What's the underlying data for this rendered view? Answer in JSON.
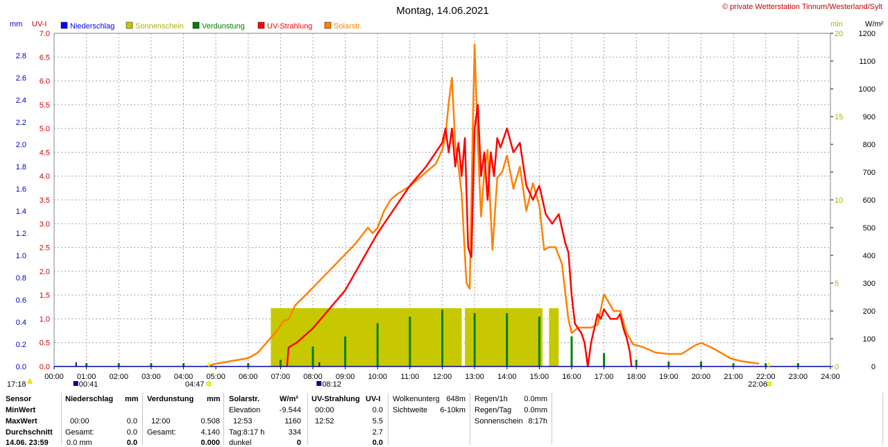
{
  "title": "Montag, 14.06.2021",
  "copyright": "© private Wetterstation Tinnum/Westerland/Sylt",
  "colors": {
    "niederschlag": "#0000ff",
    "sonnenschein": "#c8c800",
    "verdunstung": "#008000",
    "uv": "#ff0000",
    "solar": "#ff8000"
  },
  "chart_data": {
    "type": "line",
    "axes": {
      "left_mm": {
        "label": "mm",
        "min": 0,
        "max": 3.0,
        "ticks": [
          "0.0",
          "0.2",
          "0.4",
          "0.6",
          "0.8",
          "1.0",
          "1.2",
          "1.4",
          "1.6",
          "1.8",
          "2.0",
          "2.2",
          "2.4",
          "2.6",
          "2.8"
        ]
      },
      "left_uv": {
        "label": "UV-I",
        "min": 0,
        "max": 7.0,
        "ticks": [
          "0.0",
          "0.5",
          "1.0",
          "1.5",
          "2.0",
          "2.5",
          "3.0",
          "3.5",
          "4.0",
          "4.5",
          "5.0",
          "5.5",
          "6.0",
          "6.5",
          "7.0"
        ]
      },
      "right_min": {
        "label": "min",
        "min": 0,
        "max": 20,
        "ticks": [
          "0",
          "5",
          "10",
          "15",
          "20"
        ]
      },
      "right_wm2": {
        "label": "W/m²",
        "min": 0,
        "max": 1200,
        "ticks": [
          "0",
          "100",
          "200",
          "300",
          "400",
          "500",
          "600",
          "700",
          "800",
          "900",
          "1000",
          "1100",
          "1200"
        ]
      },
      "x": {
        "min": 0,
        "max": 24,
        "ticks": [
          "00:00",
          "01:00",
          "02:00",
          "03:00",
          "04:00",
          "05:00",
          "06:00",
          "07:00",
          "08:00",
          "09:00",
          "10:00",
          "11:00",
          "12:00",
          "13:00",
          "14:00",
          "15:00",
          "16:00",
          "17:00",
          "18:00",
          "19:00",
          "20:00",
          "21:00",
          "22:00",
          "23:00",
          "24:00"
        ]
      }
    },
    "legend": [
      {
        "name": "Niederschlag",
        "color": "#0000ff"
      },
      {
        "name": "Sonnenschein",
        "color": "#c8c800"
      },
      {
        "name": "Verdunstung",
        "color": "#008000"
      },
      {
        "name": "UV-Strahlung",
        "color": "#ff0000"
      },
      {
        "name": "Solarstr.",
        "color": "#ff8000"
      }
    ],
    "markers": [
      {
        "time": 17.3,
        "label": "17:18"
      },
      {
        "time": 0.68,
        "label": "00:41"
      },
      {
        "time": 4.78,
        "label": "04:47"
      },
      {
        "time": 8.2,
        "label": "08:12"
      },
      {
        "time": 22.1,
        "label": "22:06"
      }
    ],
    "series": [
      {
        "name": "Solarstr.",
        "unit": "W/m²",
        "axis": "right_wm2",
        "x": [
          4.7,
          5.0,
          5.5,
          6.0,
          6.3,
          6.6,
          6.9,
          7.1,
          7.25,
          7.45,
          7.8,
          8.3,
          8.8,
          9.3,
          9.7,
          9.85,
          10.0,
          10.2,
          10.4,
          10.6,
          11.0,
          11.3,
          11.6,
          11.8,
          12.0,
          12.1,
          12.2,
          12.3,
          12.4,
          12.5,
          12.6,
          12.7,
          12.75,
          12.85,
          12.9,
          12.95,
          13.0,
          13.1,
          13.2,
          13.3,
          13.4,
          13.55,
          13.7,
          13.85,
          14.0,
          14.2,
          14.4,
          14.6,
          14.8,
          15.0,
          15.15,
          15.3,
          15.5,
          15.7,
          15.9,
          16.0,
          16.2,
          16.4,
          16.6,
          16.8,
          17.0,
          17.1,
          17.3,
          17.5,
          17.7,
          17.9,
          18.2,
          18.6,
          19.0,
          19.4,
          19.8,
          20.0,
          20.3,
          20.6,
          20.9,
          21.2,
          21.5,
          21.8
        ],
        "y": [
          0,
          10,
          20,
          30,
          50,
          90,
          130,
          165,
          170,
          220,
          260,
          320,
          380,
          440,
          500,
          480,
          500,
          560,
          600,
          620,
          650,
          680,
          710,
          730,
          780,
          830,
          950,
          1040,
          800,
          720,
          620,
          400,
          300,
          280,
          600,
          900,
          1160,
          800,
          540,
          700,
          780,
          420,
          680,
          700,
          760,
          640,
          720,
          560,
          660,
          580,
          420,
          430,
          430,
          370,
          170,
          120,
          140,
          140,
          140,
          150,
          260,
          240,
          200,
          200,
          120,
          80,
          70,
          50,
          45,
          45,
          75,
          85,
          70,
          50,
          30,
          20,
          15,
          10
        ]
      },
      {
        "name": "UV-Strahlung",
        "unit": "UV-I",
        "axis": "left_uv",
        "x": [
          7.2,
          7.25,
          7.5,
          8.0,
          8.5,
          9.0,
          9.5,
          10.0,
          10.5,
          11.0,
          11.5,
          12.0,
          12.1,
          12.2,
          12.3,
          12.4,
          12.5,
          12.6,
          12.7,
          12.8,
          12.9,
          13.0,
          13.1,
          13.2,
          13.3,
          13.4,
          13.5,
          13.6,
          13.7,
          13.8,
          14.0,
          14.2,
          14.4,
          14.6,
          14.8,
          15.0,
          15.2,
          15.4,
          15.6,
          15.8,
          15.9,
          16.0,
          16.1,
          16.2,
          16.3,
          16.4,
          16.5,
          16.6,
          16.8,
          16.9,
          17.0,
          17.2,
          17.4,
          17.5,
          17.6,
          17.7,
          17.8,
          17.85
        ],
        "y": [
          0,
          0.4,
          0.5,
          0.8,
          1.2,
          1.6,
          2.2,
          2.8,
          3.3,
          3.8,
          4.2,
          4.7,
          5.0,
          4.5,
          5.0,
          4.2,
          4.7,
          4.0,
          4.8,
          2.5,
          2.3,
          5.0,
          5.5,
          4.0,
          4.5,
          3.5,
          4.5,
          4.0,
          4.8,
          4.6,
          5.0,
          4.5,
          4.7,
          3.8,
          3.5,
          3.8,
          3.2,
          3.0,
          3.2,
          2.6,
          2.4,
          1.5,
          0.9,
          0.8,
          0.7,
          0.5,
          0.0,
          0.5,
          1.1,
          1.0,
          1.2,
          1.0,
          1.0,
          1.1,
          0.8,
          0.6,
          0.3,
          0.0
        ]
      }
    ],
    "bars": {
      "verdunstung": {
        "unit": "min",
        "axis": "right_min",
        "times": [
          1.0,
          2.0,
          3.0,
          4.0,
          6.0,
          7.0,
          8.0,
          9.0,
          10.0,
          11.0,
          12.0,
          13.0,
          14.0,
          15.0,
          16.0,
          17.0,
          18.0,
          19.0,
          20.0,
          21.0,
          22.0,
          23.0
        ],
        "values": [
          0.2,
          0.2,
          0.2,
          0.2,
          0.2,
          0.4,
          1.2,
          1.8,
          2.6,
          3.0,
          3.4,
          3.2,
          3.2,
          3.0,
          1.8,
          0.8,
          0.4,
          0.3,
          0.3,
          0.2,
          0.2,
          0.2
        ]
      },
      "sonnenschein": {
        "unit": "min",
        "spans": [
          [
            6.7,
            12.6
          ],
          [
            12.7,
            15.1
          ],
          [
            15.3,
            15.6
          ]
        ],
        "value": 3.5
      }
    }
  },
  "footer": {
    "row_labels": [
      "Sensor",
      "MinWert",
      "MaxWert",
      "Durchschnitt",
      "14.06. 23:59"
    ],
    "niederschlag": {
      "header": "Niederschlag",
      "unit": "mm",
      "rows": [
        [
          "",
          ""
        ],
        [
          "00:00",
          "0.0"
        ],
        [
          "Gesamt:",
          "0.0"
        ],
        [
          "0.0 mm",
          "0.0"
        ]
      ]
    },
    "verdunstung": {
      "header": "Verdunstung",
      "unit": "mm",
      "rows": [
        [
          "",
          ""
        ],
        [
          "12:00",
          "0.508"
        ],
        [
          "Gesamt:",
          "4.140"
        ],
        [
          "",
          "0.000"
        ]
      ]
    },
    "solar": {
      "header": "Solarstr.",
      "unit": "W/m²",
      "rows": [
        [
          "Elevation",
          "-9.544"
        ],
        [
          "12:53",
          "1160"
        ],
        [
          "Tag:8:17 h",
          "334"
        ],
        [
          "dunkel",
          "0"
        ]
      ]
    },
    "uv": {
      "header": "UV-Strahlung",
      "unit": "UV-I",
      "rows": [
        [
          "00:00",
          "0.0"
        ],
        [
          "12:52",
          "5.5"
        ],
        [
          "",
          "2.7"
        ],
        [
          "",
          "0.0"
        ]
      ]
    },
    "wolken": [
      [
        "Wolkenunterg",
        "648m"
      ],
      [
        "Sichtweite",
        "6-10km"
      ]
    ],
    "regen": [
      [
        "Regen/1h",
        "0.0mm"
      ],
      [
        "Regen/Tag",
        "0.0mm"
      ],
      [
        "Sonnenschein",
        "8:17h"
      ]
    ]
  }
}
